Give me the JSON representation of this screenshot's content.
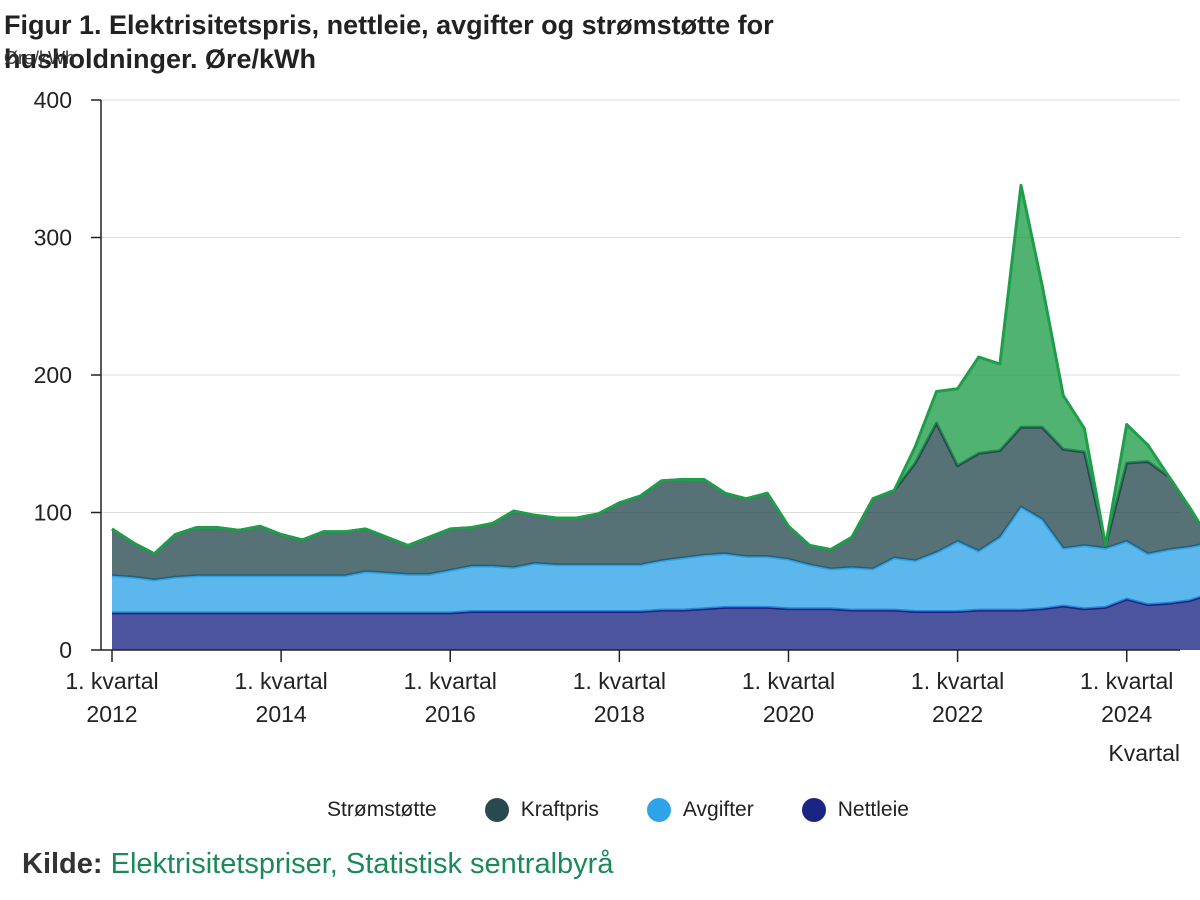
{
  "header": {
    "title": "Figur 1. Elektrisitetspris, nettleie, avgifter og strømstøtte for husholdninger. Øre/kWh",
    "y_unit": "Øre/kWh"
  },
  "source": {
    "label": "Kilde:",
    "link_text": "Elektrisitetspriser, Statistisk sentralbyrå"
  },
  "colors": {
    "stromstotte": "#1f9e4a",
    "kraftpris": "#284a4f",
    "avgifter": "#2ea3e8",
    "nettleie": "#1a2483"
  },
  "chart_data": {
    "type": "area",
    "stacked": true,
    "xlabel": "Kvartal",
    "ylabel": "Øre/kWh",
    "ylim": [
      0,
      400
    ],
    "yticks": [
      0,
      100,
      200,
      300,
      400
    ],
    "x_tick_labels": [
      {
        "line1": "1. kvartal",
        "line2": "2012",
        "index": 0
      },
      {
        "line1": "1. kvartal",
        "line2": "2014",
        "index": 8
      },
      {
        "line1": "1. kvartal",
        "line2": "2016",
        "index": 16
      },
      {
        "line1": "1. kvartal",
        "line2": "2018",
        "index": 24
      },
      {
        "line1": "1. kvartal",
        "line2": "2020",
        "index": 32
      },
      {
        "line1": "1. kvartal",
        "line2": "2022",
        "index": 40
      },
      {
        "line1": "1. kvartal",
        "line2": "2024",
        "index": 48
      }
    ],
    "legend_position": "bottom",
    "grid": true,
    "series": [
      {
        "name": "Nettleie",
        "values": [
          27,
          27,
          27,
          27,
          27,
          27,
          27,
          27,
          27,
          27,
          27,
          27,
          27,
          27,
          27,
          27,
          27,
          28,
          28,
          28,
          28,
          28,
          28,
          28,
          28,
          28,
          29,
          29,
          30,
          31,
          31,
          31,
          30,
          30,
          30,
          29,
          29,
          29,
          28,
          28,
          28,
          29,
          29,
          29,
          30,
          32,
          30,
          31,
          37,
          33,
          34,
          36,
          41
        ]
      },
      {
        "name": "Avgifter",
        "values": [
          27,
          26,
          24,
          26,
          27,
          27,
          27,
          27,
          27,
          27,
          27,
          27,
          30,
          29,
          28,
          28,
          31,
          33,
          33,
          32,
          35,
          34,
          34,
          34,
          34,
          34,
          36,
          38,
          39,
          39,
          37,
          37,
          36,
          32,
          29,
          31,
          30,
          38,
          37,
          43,
          51,
          43,
          53,
          75,
          65,
          42,
          46,
          43,
          42,
          37,
          39,
          39,
          37
        ]
      },
      {
        "name": "Kraftpris",
        "values": [
          34,
          25,
          19,
          31,
          35,
          35,
          33,
          36,
          30,
          26,
          32,
          32,
          31,
          26,
          21,
          27,
          30,
          28,
          31,
          41,
          35,
          34,
          34,
          37,
          45,
          50,
          58,
          57,
          55,
          44,
          42,
          46,
          24,
          14,
          14,
          22,
          51,
          49,
          71,
          94,
          55,
          71,
          63,
          58,
          67,
          72,
          68,
          2,
          57,
          67,
          53,
          28,
          0
        ]
      },
      {
        "name": "Strømstøtte",
        "values": [
          0,
          0,
          0,
          0,
          0,
          0,
          0,
          0,
          0,
          0,
          0,
          0,
          0,
          0,
          0,
          0,
          0,
          0,
          0,
          0,
          0,
          0,
          0,
          0,
          0,
          0,
          0,
          0,
          0,
          0,
          0,
          0,
          0,
          0,
          0,
          0,
          0,
          0,
          12,
          23,
          56,
          70,
          63,
          176,
          103,
          39,
          17,
          0,
          28,
          12,
          0,
          0,
          0
        ]
      }
    ]
  }
}
